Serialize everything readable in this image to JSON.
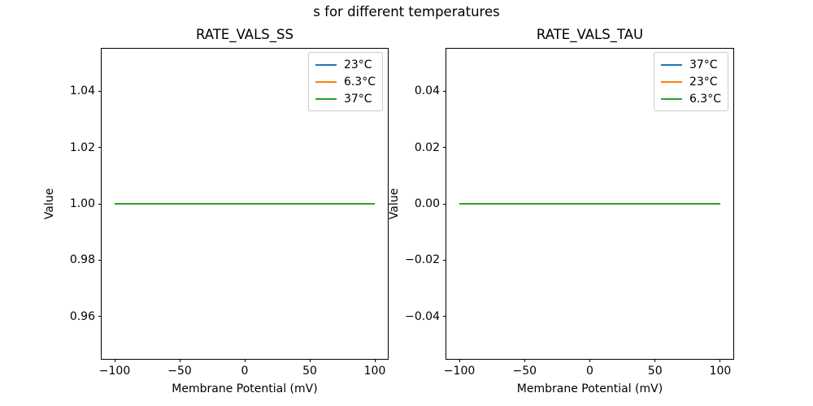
{
  "suptitle": "s for different temperatures",
  "chart_data": [
    {
      "type": "line",
      "title": "RATE_VALS_SS",
      "xlabel": "Membrane Potential (mV)",
      "ylabel": "Value",
      "xlim": [
        -110,
        110
      ],
      "ylim": [
        0.945,
        1.055
      ],
      "grid": false,
      "legend_position": "upper right",
      "xticks": {
        "values": [
          -100,
          -50,
          0,
          50,
          100
        ],
        "labels": [
          "−100",
          "−50",
          "0",
          "50",
          "100"
        ]
      },
      "yticks": {
        "values": [
          0.96,
          0.98,
          1.0,
          1.02,
          1.04
        ],
        "labels": [
          "0.96",
          "0.98",
          "1.00",
          "1.02",
          "1.04"
        ]
      },
      "x": [
        -100,
        100
      ],
      "series": [
        {
          "name": "23°C",
          "color": "#1f77b4",
          "values": [
            1.0,
            1.0
          ]
        },
        {
          "name": "6.3°C",
          "color": "#ff7f0e",
          "values": [
            1.0,
            1.0
          ]
        },
        {
          "name": "37°C",
          "color": "#2ca02c",
          "values": [
            1.0,
            1.0
          ]
        }
      ],
      "legend_entries": [
        "23°C",
        "6.3°C",
        "37°C"
      ]
    },
    {
      "type": "line",
      "title": "RATE_VALS_TAU",
      "xlabel": "Membrane Potential (mV)",
      "ylabel": "Value",
      "xlim": [
        -110,
        110
      ],
      "ylim": [
        -0.055,
        0.055
      ],
      "grid": false,
      "legend_position": "upper right",
      "xticks": {
        "values": [
          -100,
          -50,
          0,
          50,
          100
        ],
        "labels": [
          "−100",
          "−50",
          "0",
          "50",
          "100"
        ]
      },
      "yticks": {
        "values": [
          -0.04,
          -0.02,
          0.0,
          0.02,
          0.04
        ],
        "labels": [
          "−0.04",
          "−0.02",
          "0.00",
          "0.02",
          "0.04"
        ]
      },
      "x": [
        -100,
        100
      ],
      "series": [
        {
          "name": "37°C",
          "color": "#1f77b4",
          "values": [
            0.0,
            0.0
          ]
        },
        {
          "name": "23°C",
          "color": "#ff7f0e",
          "values": [
            0.0,
            0.0
          ]
        },
        {
          "name": "6.3°C",
          "color": "#2ca02c",
          "values": [
            0.0,
            0.0
          ]
        }
      ],
      "legend_entries": [
        "37°C",
        "23°C",
        "6.3°C"
      ]
    }
  ]
}
